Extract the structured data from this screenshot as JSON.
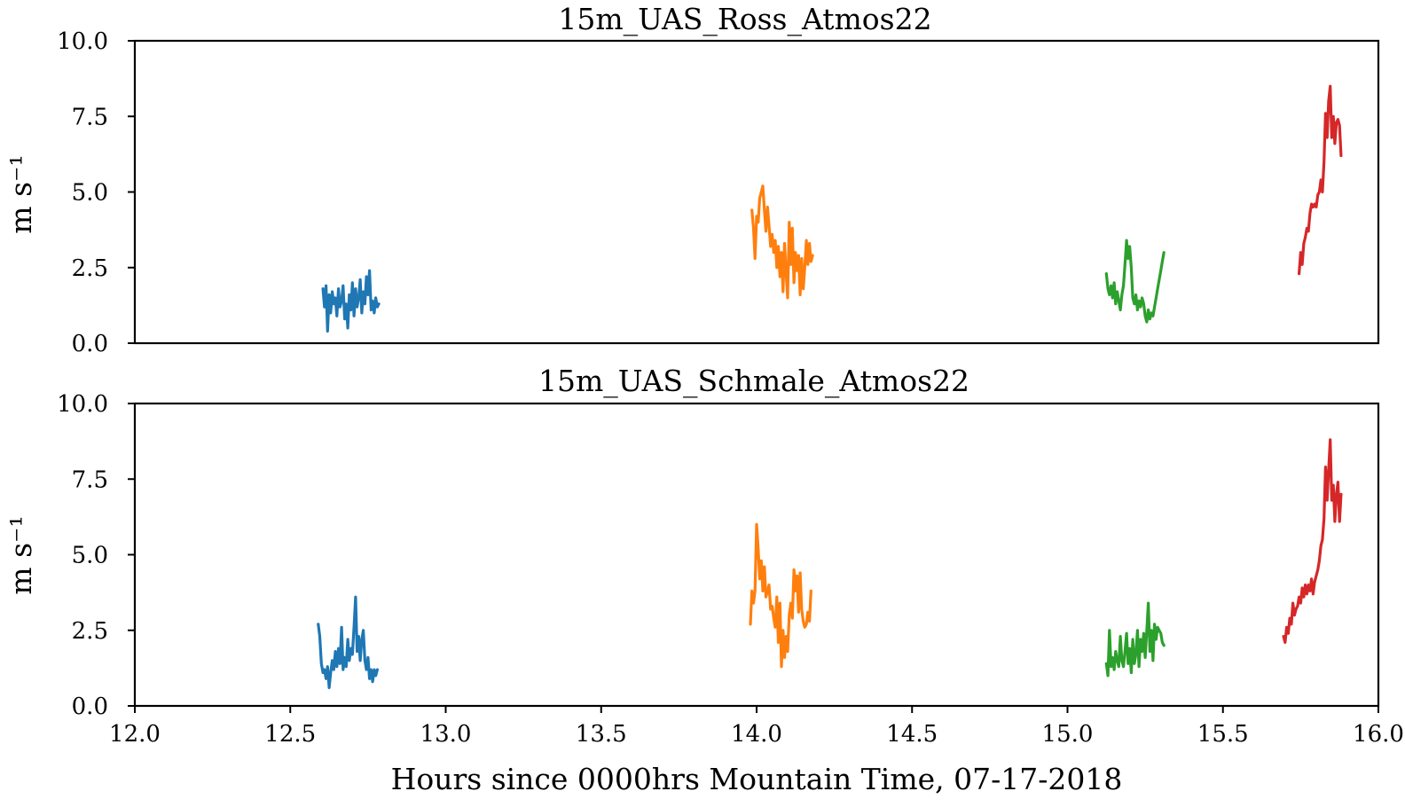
{
  "chart_data": [
    {
      "type": "line",
      "title": "15m_UAS_Ross_Atmos22",
      "ylabel": "m s⁻¹",
      "xlabel": "",
      "xlim": [
        12.0,
        16.0
      ],
      "ylim": [
        0.0,
        10.0
      ],
      "yticks": [
        "0.0",
        "2.5",
        "5.0",
        "7.5",
        "10.0"
      ],
      "xticks": [],
      "grid": false,
      "series": [
        {
          "color": "#1f77b4",
          "x": [
            12.605,
            12.61,
            12.615,
            12.62,
            12.625,
            12.63,
            12.635,
            12.64,
            12.645,
            12.65,
            12.655,
            12.66,
            12.665,
            12.67,
            12.675,
            12.68,
            12.685,
            12.69,
            12.695,
            12.7,
            12.705,
            12.71,
            12.715,
            12.72,
            12.725,
            12.73,
            12.735,
            12.74,
            12.745,
            12.75,
            12.755,
            12.76,
            12.765,
            12.77,
            12.775,
            12.78,
            12.785
          ],
          "y": [
            1.8,
            1.2,
            1.9,
            0.4,
            1.6,
            1.0,
            1.7,
            1.3,
            1.5,
            0.9,
            1.8,
            1.2,
            1.4,
            1.9,
            0.8,
            1.3,
            0.5,
            1.6,
            1.1,
            2.0,
            0.9,
            1.8,
            1.2,
            1.5,
            2.1,
            1.0,
            1.7,
            1.3,
            2.2,
            1.6,
            2.4,
            1.1,
            1.4,
            1.0,
            1.5,
            1.2,
            1.3
          ]
        },
        {
          "color": "#ff7f0e",
          "x": [
            13.985,
            13.99,
            13.995,
            14.0,
            14.005,
            14.01,
            14.015,
            14.02,
            14.025,
            14.03,
            14.035,
            14.04,
            14.045,
            14.05,
            14.055,
            14.06,
            14.065,
            14.07,
            14.075,
            14.08,
            14.085,
            14.09,
            14.095,
            14.1,
            14.105,
            14.11,
            14.115,
            14.12,
            14.125,
            14.13,
            14.135,
            14.14,
            14.145,
            14.15,
            14.155,
            14.16,
            14.165,
            14.17,
            14.175,
            14.18
          ],
          "y": [
            4.4,
            3.8,
            2.8,
            4.2,
            4.0,
            4.8,
            5.0,
            5.2,
            4.4,
            3.7,
            4.5,
            3.9,
            3.2,
            3.6,
            3.0,
            3.4,
            2.5,
            3.2,
            2.2,
            3.0,
            1.7,
            3.3,
            2.3,
            1.5,
            4.0,
            2.6,
            3.8,
            2.0,
            3.0,
            2.4,
            2.9,
            1.6,
            2.8,
            1.8,
            2.5,
            3.4,
            2.6,
            3.3,
            2.7,
            2.9
          ]
        },
        {
          "color": "#2ca02c",
          "x": [
            15.125,
            15.13,
            15.135,
            15.14,
            15.145,
            15.15,
            15.155,
            15.16,
            15.165,
            15.17,
            15.175,
            15.18,
            15.185,
            15.19,
            15.195,
            15.2,
            15.205,
            15.21,
            15.215,
            15.22,
            15.225,
            15.23,
            15.235,
            15.24,
            15.245,
            15.25,
            15.255,
            15.26,
            15.265,
            15.27,
            15.275,
            15.28,
            15.285,
            15.29,
            15.295,
            15.3,
            15.305,
            15.31
          ],
          "y": [
            2.3,
            1.8,
            1.6,
            1.9,
            1.5,
            2.0,
            1.3,
            1.7,
            1.4,
            1.1,
            1.6,
            1.9,
            2.6,
            3.4,
            2.8,
            3.2,
            2.5,
            1.5,
            1.3,
            1.6,
            1.1,
            1.4,
            1.2,
            1.5,
            1.3,
            0.9,
            0.7,
            1.1,
            0.8,
            1.0,
            0.9,
            1.2,
            1.5,
            1.8,
            2.1,
            2.4,
            2.7,
            3.0
          ]
        },
        {
          "color": "#d62728",
          "x": [
            15.745,
            15.75,
            15.755,
            15.76,
            15.765,
            15.77,
            15.775,
            15.78,
            15.785,
            15.79,
            15.795,
            15.8,
            15.805,
            15.81,
            15.815,
            15.82,
            15.825,
            15.83,
            15.835,
            15.84,
            15.845,
            15.85,
            15.855,
            15.86,
            15.865,
            15.87,
            15.875,
            15.88
          ],
          "y": [
            2.3,
            3.0,
            2.6,
            3.3,
            3.5,
            3.8,
            3.7,
            4.3,
            4.6,
            4.5,
            4.6,
            4.5,
            4.9,
            5.0,
            5.4,
            5.0,
            6.0,
            7.6,
            6.8,
            8.0,
            8.5,
            6.8,
            7.5,
            6.6,
            7.3,
            7.4,
            7.2,
            6.2
          ]
        }
      ]
    },
    {
      "type": "line",
      "title": "15m_UAS_Schmale_Atmos22",
      "ylabel": "m s⁻¹",
      "xlabel": "Hours since 0000hrs Mountain Time, 07-17-2018",
      "xlim": [
        12.0,
        16.0
      ],
      "ylim": [
        0.0,
        10.0
      ],
      "yticks": [
        "0.0",
        "2.5",
        "5.0",
        "7.5",
        "10.0"
      ],
      "xticks": [
        "12.0",
        "12.5",
        "13.0",
        "13.5",
        "14.0",
        "14.5",
        "15.0",
        "15.5",
        "16.0"
      ],
      "grid": false,
      "series": [
        {
          "color": "#1f77b4",
          "x": [
            12.59,
            12.595,
            12.6,
            12.605,
            12.61,
            12.615,
            12.62,
            12.625,
            12.63,
            12.635,
            12.64,
            12.645,
            12.65,
            12.655,
            12.66,
            12.665,
            12.67,
            12.675,
            12.68,
            12.685,
            12.69,
            12.695,
            12.7,
            12.705,
            12.71,
            12.715,
            12.72,
            12.725,
            12.73,
            12.735,
            12.74,
            12.745,
            12.75,
            12.755,
            12.76,
            12.765,
            12.77,
            12.775,
            12.78
          ],
          "y": [
            2.7,
            2.3,
            1.4,
            1.1,
            1.2,
            0.9,
            1.3,
            0.6,
            1.1,
            1.5,
            1.2,
            1.8,
            1.3,
            1.9,
            1.4,
            2.6,
            1.2,
            1.6,
            1.3,
            2.2,
            1.5,
            1.9,
            1.7,
            2.6,
            3.6,
            1.8,
            2.3,
            1.5,
            2.2,
            2.5,
            1.5,
            1.2,
            1.6,
            0.9,
            1.2,
            0.8,
            1.2,
            1.0,
            1.2
          ]
        },
        {
          "color": "#ff7f0e",
          "x": [
            13.98,
            13.985,
            13.99,
            13.995,
            14.0,
            14.005,
            14.01,
            14.015,
            14.02,
            14.025,
            14.03,
            14.035,
            14.04,
            14.045,
            14.05,
            14.055,
            14.06,
            14.065,
            14.07,
            14.075,
            14.08,
            14.085,
            14.09,
            14.095,
            14.1,
            14.105,
            14.11,
            14.115,
            14.12,
            14.125,
            14.13,
            14.135,
            14.14,
            14.145,
            14.15,
            14.155,
            14.16,
            14.165,
            14.17,
            14.175
          ],
          "y": [
            2.7,
            3.8,
            3.4,
            3.8,
            6.0,
            5.2,
            4.2,
            4.8,
            3.8,
            4.6,
            3.6,
            3.8,
            4.0,
            3.2,
            3.3,
            2.9,
            2.6,
            3.6,
            2.1,
            3.4,
            1.3,
            2.5,
            1.6,
            2.3,
            1.8,
            3.0,
            3.4,
            2.9,
            4.5,
            3.8,
            4.3,
            3.1,
            4.4,
            3.2,
            2.8,
            2.6,
            2.7,
            3.1,
            2.8,
            3.8
          ]
        },
        {
          "color": "#2ca02c",
          "x": [
            15.125,
            15.13,
            15.135,
            15.14,
            15.145,
            15.15,
            15.155,
            15.16,
            15.165,
            15.17,
            15.175,
            15.18,
            15.185,
            15.19,
            15.195,
            15.2,
            15.205,
            15.21,
            15.215,
            15.22,
            15.225,
            15.23,
            15.235,
            15.24,
            15.245,
            15.25,
            15.255,
            15.26,
            15.265,
            15.27,
            15.275,
            15.28,
            15.285,
            15.29,
            15.295,
            15.3,
            15.305,
            15.31
          ],
          "y": [
            1.4,
            1.0,
            2.5,
            1.3,
            1.6,
            1.2,
            1.8,
            1.5,
            1.3,
            2.3,
            1.5,
            1.3,
            1.8,
            2.4,
            1.4,
            1.9,
            1.1,
            2.2,
            1.4,
            1.7,
            2.5,
            1.3,
            2.2,
            1.8,
            2.4,
            1.6,
            2.5,
            3.4,
            1.8,
            2.5,
            1.5,
            2.7,
            2.2,
            2.6,
            2.5,
            2.4,
            2.1,
            2.0
          ]
        },
        {
          "color": "#d62728",
          "x": [
            15.695,
            15.7,
            15.705,
            15.71,
            15.715,
            15.72,
            15.725,
            15.73,
            15.735,
            15.74,
            15.745,
            15.75,
            15.755,
            15.76,
            15.765,
            15.77,
            15.775,
            15.78,
            15.785,
            15.79,
            15.795,
            15.8,
            15.805,
            15.81,
            15.815,
            15.82,
            15.825,
            15.83,
            15.835,
            15.84,
            15.845,
            15.85,
            15.855,
            15.86,
            15.865,
            15.87,
            15.875,
            15.88
          ],
          "y": [
            2.3,
            2.1,
            2.6,
            2.4,
            2.9,
            2.7,
            3.4,
            3.0,
            3.2,
            3.3,
            3.6,
            3.4,
            3.9,
            3.6,
            4.0,
            3.7,
            4.0,
            3.8,
            4.2,
            3.7,
            4.1,
            4.3,
            4.5,
            4.8,
            5.3,
            5.5,
            6.2,
            7.9,
            6.8,
            7.8,
            8.8,
            6.8,
            7.3,
            6.1,
            7.0,
            7.4,
            6.1,
            7.0
          ]
        }
      ]
    }
  ]
}
